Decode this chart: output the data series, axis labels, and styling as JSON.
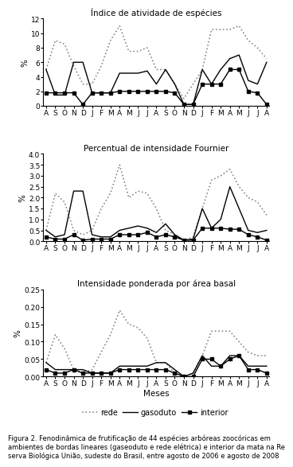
{
  "months": [
    "A",
    "S",
    "O",
    "N",
    "D",
    "J",
    "F",
    "M",
    "A",
    "M",
    "J",
    "J",
    "A",
    "S",
    "O",
    "N",
    "D",
    "J",
    "F",
    "M",
    "A",
    "M",
    "J",
    "J",
    "A"
  ],
  "title1": "Índice de atividade de espécies",
  "title2": "Percentual de intensidade Fournier",
  "title3": "Intensidade ponderada por área basal",
  "xlabel": "Meses",
  "ylabel": "%",
  "plot1": {
    "rede": [
      5.0,
      9.0,
      8.5,
      5.5,
      3.0,
      3.0,
      5.5,
      9.0,
      11.0,
      7.5,
      7.5,
      8.0,
      5.0,
      5.0,
      3.0,
      1.0,
      3.0,
      5.0,
      10.5,
      10.5,
      10.5,
      11.0,
      9.0,
      8.0,
      6.5
    ],
    "gasoduto": [
      5.0,
      1.5,
      1.5,
      6.0,
      6.0,
      1.8,
      1.8,
      1.8,
      4.5,
      4.5,
      4.5,
      4.8,
      3.0,
      5.0,
      3.0,
      0.2,
      0.2,
      5.0,
      3.0,
      5.0,
      6.5,
      7.0,
      3.5,
      3.0,
      6.0
    ],
    "interior": [
      1.8,
      1.8,
      1.8,
      1.8,
      0.2,
      1.8,
      1.8,
      1.8,
      2.0,
      2.0,
      2.0,
      2.0,
      2.0,
      2.0,
      1.8,
      0.2,
      0.2,
      3.0,
      3.0,
      3.0,
      5.0,
      5.0,
      2.0,
      1.8,
      0.2
    ],
    "ylim": [
      0,
      12
    ],
    "yticks": [
      0,
      2,
      4,
      6,
      8,
      10,
      12
    ]
  },
  "plot2": {
    "rede": [
      0.5,
      2.2,
      1.8,
      0.5,
      0.3,
      0.5,
      1.5,
      2.2,
      3.5,
      2.0,
      2.3,
      2.2,
      1.5,
      0.5,
      0.3,
      0.05,
      0.2,
      1.5,
      2.8,
      3.0,
      3.3,
      2.5,
      2.0,
      1.8,
      1.2
    ],
    "gasoduto": [
      0.5,
      0.2,
      0.3,
      2.3,
      2.3,
      0.3,
      0.2,
      0.2,
      0.5,
      0.6,
      0.7,
      0.6,
      0.4,
      0.8,
      0.3,
      0.05,
      0.1,
      1.5,
      0.6,
      1.0,
      2.5,
      1.5,
      0.5,
      0.4,
      0.5
    ],
    "interior": [
      0.2,
      0.1,
      0.1,
      0.3,
      0.05,
      0.1,
      0.1,
      0.1,
      0.3,
      0.3,
      0.3,
      0.4,
      0.2,
      0.3,
      0.2,
      0.05,
      0.05,
      0.6,
      0.6,
      0.6,
      0.55,
      0.55,
      0.3,
      0.2,
      0.05
    ],
    "ylim": [
      0,
      4
    ],
    "yticks": [
      0,
      0.5,
      1.0,
      1.5,
      2.0,
      2.5,
      3.0,
      3.5,
      4.0
    ]
  },
  "plot3": {
    "rede": [
      0.04,
      0.12,
      0.08,
      0.02,
      0.01,
      0.02,
      0.07,
      0.12,
      0.19,
      0.15,
      0.14,
      0.11,
      0.04,
      0.04,
      0.01,
      0.0,
      0.01,
      0.06,
      0.13,
      0.13,
      0.13,
      0.1,
      0.07,
      0.06,
      0.06
    ],
    "gasoduto": [
      0.04,
      0.02,
      0.02,
      0.02,
      0.02,
      0.01,
      0.01,
      0.01,
      0.03,
      0.03,
      0.03,
      0.03,
      0.04,
      0.04,
      0.02,
      0.0,
      0.01,
      0.06,
      0.03,
      0.03,
      0.06,
      0.06,
      0.03,
      0.03,
      0.03
    ],
    "interior": [
      0.02,
      0.01,
      0.01,
      0.02,
      0.01,
      0.01,
      0.01,
      0.01,
      0.02,
      0.02,
      0.02,
      0.02,
      0.02,
      0.02,
      0.01,
      0.0,
      0.0,
      0.05,
      0.05,
      0.03,
      0.05,
      0.06,
      0.02,
      0.02,
      0.01
    ],
    "ylim": [
      0,
      0.25
    ],
    "yticks": [
      0,
      0.05,
      0.1,
      0.15,
      0.2,
      0.25
    ]
  },
  "caption": "Figura 2. Fenodinâmica de frutificação de 44 espécies arbóreas zoocóricas em ambientes de bordas lineares (gaseoduto e rede elétrica) e interior da mata na Re serva Biológica União, sudeste do Brasil, entre agosto de 2006 e agosto de 2008",
  "rede_color": "#888888",
  "gasoduto_color": "#000000",
  "interior_color": "#000000"
}
